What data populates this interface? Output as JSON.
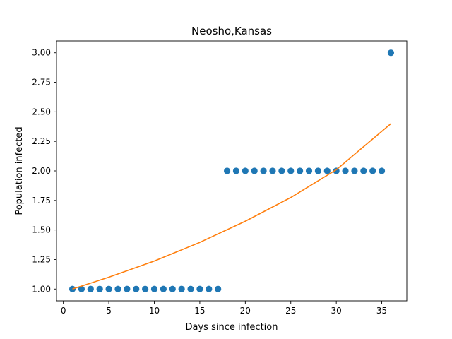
{
  "chart_data": {
    "type": "scatter",
    "title": "Neosho,Kansas",
    "xlabel": "Days since infection",
    "ylabel": "Population infected",
    "xlim": [
      -0.75,
      37.75
    ],
    "ylim": [
      0.9,
      3.1
    ],
    "xticks": [
      0,
      5,
      10,
      15,
      20,
      25,
      30,
      35
    ],
    "yticks": [
      1.0,
      1.25,
      1.5,
      1.75,
      2.0,
      2.25,
      2.5,
      2.75,
      3.0
    ],
    "ytick_labels": [
      "1.00",
      "1.25",
      "1.50",
      "1.75",
      "2.00",
      "2.25",
      "2.50",
      "2.75",
      "3.00"
    ],
    "grid": false,
    "series": [
      {
        "kind": "scatter",
        "color": "#1f77b4",
        "x": [
          1,
          2,
          3,
          4,
          5,
          6,
          7,
          8,
          9,
          10,
          11,
          12,
          13,
          14,
          15,
          16,
          17,
          18,
          19,
          20,
          21,
          22,
          23,
          24,
          25,
          26,
          27,
          28,
          29,
          30,
          31,
          32,
          33,
          34,
          35,
          36
        ],
        "y": [
          1,
          1,
          1,
          1,
          1,
          1,
          1,
          1,
          1,
          1,
          1,
          1,
          1,
          1,
          1,
          1,
          1,
          2,
          2,
          2,
          2,
          2,
          2,
          2,
          2,
          2,
          2,
          2,
          2,
          2,
          2,
          2,
          2,
          2,
          2,
          3
        ]
      },
      {
        "kind": "line",
        "color": "#ff7f0e",
        "x": [
          1,
          5,
          10,
          15,
          20,
          25,
          30,
          36
        ],
        "y": [
          1.0,
          1.1,
          1.237,
          1.395,
          1.574,
          1.775,
          2.01,
          2.4
        ]
      }
    ]
  }
}
